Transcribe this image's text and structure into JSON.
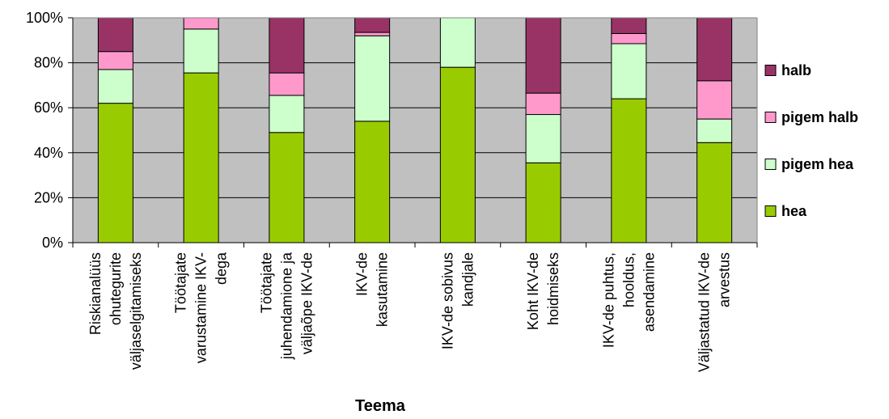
{
  "chart_data": {
    "type": "stacked-bar-100",
    "xlabel": "Teema",
    "ylabel": "",
    "ylim": [
      0,
      100
    ],
    "yticks": [
      "0%",
      "20%",
      "40%",
      "60%",
      "80%",
      "100%"
    ],
    "grid": true,
    "legend_position": "right",
    "categories": [
      [
        "Riskianalüüs",
        "ohutegurite",
        "väljaselgitamiseks"
      ],
      [
        "Töötajate",
        "varustamine IKV-",
        "dega"
      ],
      [
        "Töötajate",
        "juhendamione ja",
        "väljaõpe IKV-de"
      ],
      [
        "IKV-de",
        "kasutamine"
      ],
      [
        "IKV-de sobivus",
        "kandjale"
      ],
      [
        "Koht IKV-de",
        "hoidmiseks"
      ],
      [
        "IKV-de puhtus,",
        "hooldus,",
        "asendamine"
      ],
      [
        "Väljastatud IKV-de",
        "arvestus"
      ]
    ],
    "series": [
      {
        "name": "hea",
        "color": "#99CC00",
        "values": [
          62,
          75.5,
          49,
          54,
          78,
          35.5,
          64,
          44.5
        ]
      },
      {
        "name": "pigem hea",
        "color": "#CCFFCC",
        "values": [
          15,
          19.5,
          16.5,
          38,
          22,
          21.5,
          24.5,
          10.5
        ]
      },
      {
        "name": "pigem halb",
        "color": "#FF99CC",
        "values": [
          8,
          5,
          10,
          1.5,
          0,
          9.5,
          4.5,
          17
        ]
      },
      {
        "name": "halb",
        "color": "#993366",
        "values": [
          15,
          0,
          24.5,
          6.5,
          0,
          33.5,
          7,
          28
        ]
      }
    ],
    "plot_background": "#C0C0C0"
  }
}
